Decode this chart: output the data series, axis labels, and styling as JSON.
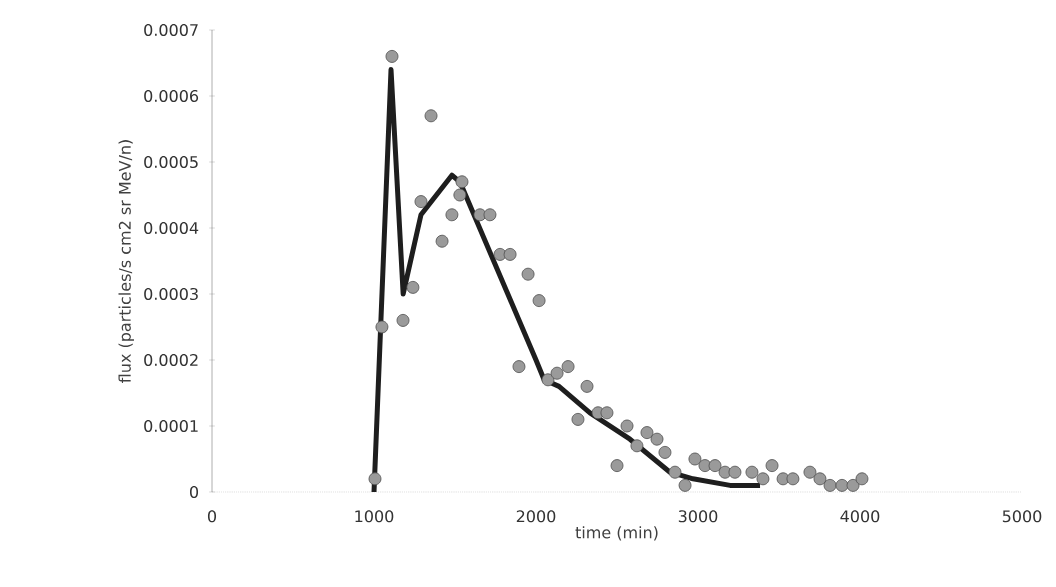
{
  "chart_data": {
    "type": "scatter",
    "xlabel": "time (min)",
    "ylabel": "flux (particles/s cm2 sr MeV/n)",
    "xlim": [
      0,
      5000
    ],
    "xticks": [
      0,
      1000,
      2000,
      3000,
      4000,
      5000
    ],
    "ylim": [
      0,
      0.0007
    ],
    "yticks": [
      0,
      0.0001,
      0.0002,
      0.0003,
      0.0004,
      0.0005,
      0.0006,
      0.0007
    ],
    "series": [
      {
        "color": "#9a9a9a",
        "marker": "circle",
        "x": [
          1006,
          1049,
          1111,
          1179,
          1240,
          1290,
          1352,
          1420,
          1481,
          1530,
          1543,
          1654,
          1716,
          1778,
          1840,
          1895,
          1951,
          2019,
          2074,
          2130,
          2198,
          2259,
          2315,
          2383,
          2438,
          2500,
          2562,
          2623,
          2685,
          2747,
          2796,
          2858,
          2920,
          2981,
          3043,
          3105,
          3167,
          3228,
          3333,
          3401,
          3457,
          3525,
          3586,
          3691,
          3753,
          3815,
          3889,
          3957,
          4012
        ],
        "values": [
          2e-05,
          0.00025,
          0.00066,
          0.00026,
          0.00031,
          0.00044,
          0.00057,
          0.00038,
          0.00042,
          0.00045,
          0.00047,
          0.00042,
          0.00042,
          0.00036,
          0.00036,
          0.00019,
          0.00033,
          0.00029,
          0.00017,
          0.00018,
          0.00019,
          0.00011,
          0.00016,
          0.00012,
          0.00012,
          4e-05,
          0.0001,
          7e-05,
          9e-05,
          8e-05,
          6e-05,
          3e-05,
          1e-05,
          5e-05,
          4e-05,
          4e-05,
          3e-05,
          3e-05,
          3e-05,
          2e-05,
          4e-05,
          2e-05,
          2e-05,
          3e-05,
          2e-05,
          1e-05,
          1e-05,
          1e-05,
          2e-05
        ]
      },
      {
        "type": "line",
        "color": "#1e1e1e",
        "marker": "none",
        "line_style": "solid",
        "x": [
          1000,
          1105,
          1180,
          1290,
          1481,
          1530,
          2000,
          2050,
          2142,
          2333,
          2580,
          2827,
          2969,
          3198,
          3383
        ],
        "values": [
          0,
          0.00064,
          0.0003,
          0.00042,
          0.00048,
          0.00047,
          0.0002,
          0.00017,
          0.00016,
          0.00012,
          8e-05,
          3e-05,
          2e-05,
          1e-05,
          1e-05
        ]
      }
    ],
    "grid": false
  }
}
